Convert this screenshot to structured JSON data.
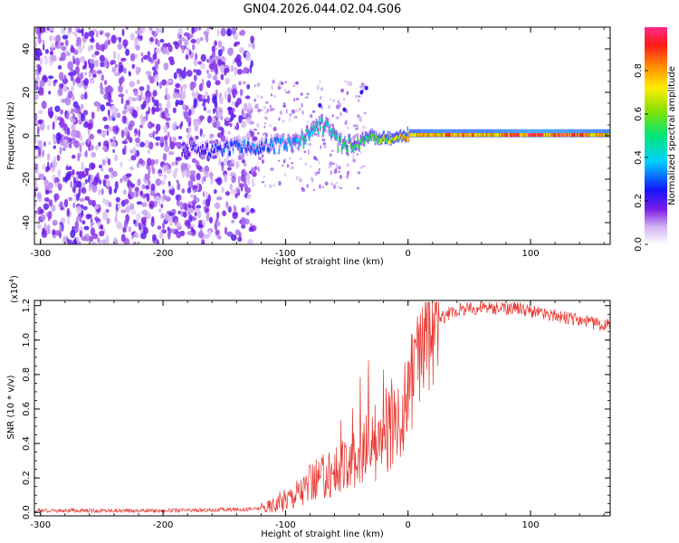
{
  "chart_data": [
    {
      "type": "heatmap",
      "title": "GN04.2026.044.02.04.G06",
      "xlabel": "Height of straight line (km)",
      "ylabel": "Frequency (Hz)",
      "xlim": [
        -305,
        165
      ],
      "ylim": [
        -50,
        50
      ],
      "xticks": [
        -300,
        -200,
        -100,
        0,
        100
      ],
      "xtick_labels": [
        "-300",
        "-200",
        "-100",
        "0",
        "100"
      ],
      "yticks": [
        -40,
        -20,
        0,
        20,
        40
      ],
      "ytick_labels": [
        "-40",
        "-20",
        "0",
        "20",
        "40"
      ],
      "colorbar": {
        "label": "Normalized spectral amplitude",
        "range": [
          0,
          1
        ],
        "ticks": [
          0,
          0.2,
          0.4,
          0.6,
          0.8
        ],
        "tick_labels": [
          "0.0",
          "0.2",
          "0.4",
          "0.6",
          "0.8"
        ]
      },
      "ridge": {
        "x": [
          -180,
          -150,
          -120,
          -100,
          -90,
          -80,
          -72,
          -65,
          -58,
          -50,
          -40,
          -30,
          -20,
          -10,
          0,
          20,
          60,
          100,
          140,
          165
        ],
        "freq": [
          -7,
          -6,
          -5,
          -4,
          -3,
          0,
          5,
          2,
          -4,
          -5,
          -3,
          -1,
          -2,
          -2,
          0,
          0,
          0,
          0,
          0,
          0
        ],
        "amplitude": [
          0.2,
          0.3,
          0.35,
          0.38,
          0.42,
          0.48,
          0.5,
          0.42,
          0.5,
          0.52,
          0.55,
          0.6,
          0.68,
          0.72,
          0.8,
          0.88,
          0.85,
          0.95,
          0.9,
          0.85
        ]
      }
    },
    {
      "type": "line",
      "xlabel": "Height of straight line (km)",
      "ylabel": "SNR (10 * v/v)",
      "yscale_label": "(x10",
      "yscale_exp": "4",
      "yscale_close": ")",
      "xlim": [
        -305,
        165
      ],
      "ylim": [
        -0.02,
        1.23
      ],
      "xticks": [
        -300,
        -200,
        -100,
        0,
        100
      ],
      "xtick_labels": [
        "-300",
        "-200",
        "-100",
        "0",
        "100"
      ],
      "yticks": [
        0,
        0.2,
        0.4,
        0.6,
        0.8,
        1.0,
        1.2
      ],
      "ytick_labels": [
        "0.0",
        "0.2",
        "0.4",
        "0.6",
        "0.8",
        "1.0",
        "1.2"
      ],
      "series": [
        {
          "name": "SNR",
          "color": "#e8352e",
          "x": [
            -305,
            -250,
            -200,
            -150,
            -125,
            -115,
            -105,
            -95,
            -85,
            -75,
            -65,
            -55,
            -45,
            -35,
            -25,
            -15,
            -5,
            5,
            15,
            25,
            35,
            45,
            60,
            75,
            90,
            105,
            120,
            135,
            150,
            165
          ],
          "y": [
            0.01,
            0.01,
            0.01,
            0.015,
            0.02,
            0.03,
            0.06,
            0.1,
            0.14,
            0.18,
            0.22,
            0.26,
            0.3,
            0.36,
            0.42,
            0.5,
            0.6,
            0.8,
            1.0,
            1.12,
            1.16,
            1.18,
            1.19,
            1.18,
            1.19,
            1.16,
            1.14,
            1.12,
            1.1,
            1.08
          ]
        }
      ]
    }
  ]
}
